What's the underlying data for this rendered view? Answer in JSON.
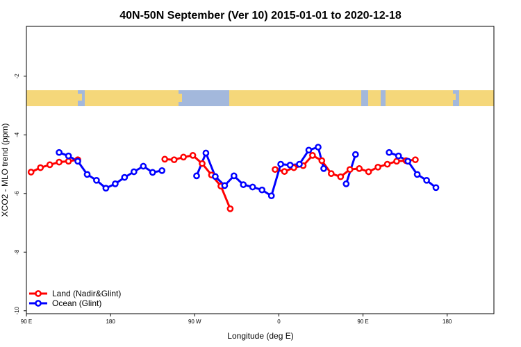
{
  "chart_data": {
    "type": "line",
    "title": "40N-50N September (Ver 10)   2015-01-01 to 2020-12-18",
    "xlabel": "Longitude (deg E)",
    "ylabel": "XCO2 - MLO trend (ppm)",
    "xlim": [
      90,
      590
    ],
    "ylim": [
      -10.1,
      -0.3
    ],
    "x_tick_values": [
      90,
      180,
      270,
      360,
      450,
      540
    ],
    "x_tick_labels": [
      "90 E",
      "180",
      "90 W",
      "0",
      "90 E",
      "180"
    ],
    "y_tick_values": [
      -2,
      -4,
      -6,
      -8,
      -10
    ],
    "y_tick_labels": [
      "-2",
      "-4",
      "-6",
      "-8",
      "-10"
    ],
    "grid": false,
    "legend_position": "bottom-left",
    "series": [
      {
        "name": "Land (Nadir&Glint)",
        "color": "#ff0000",
        "segments": [
          [
            [
              95,
              -5.27
            ],
            [
              105,
              -5.12
            ],
            [
              115,
              -5.02
            ],
            [
              125,
              -4.93
            ],
            [
              135,
              -4.9
            ],
            [
              145,
              -4.85
            ]
          ],
          [
            [
              238,
              -4.83
            ],
            [
              248,
              -4.85
            ],
            [
              258,
              -4.76
            ],
            [
              268,
              -4.7
            ],
            [
              278,
              -4.98
            ],
            [
              288,
              -5.37
            ],
            [
              298,
              -5.75
            ],
            [
              308,
              -6.52
            ]
          ],
          [
            [
              356,
              -5.18
            ],
            [
              366,
              -5.25
            ],
            [
              376,
              -5.12
            ],
            [
              386,
              -5.05
            ],
            [
              396,
              -4.7
            ],
            [
              406,
              -4.88
            ],
            [
              416,
              -5.32
            ],
            [
              426,
              -5.43
            ],
            [
              436,
              -5.18
            ],
            [
              446,
              -5.15
            ],
            [
              456,
              -5.26
            ],
            [
              466,
              -5.1
            ],
            [
              476,
              -5.0
            ],
            [
              486,
              -4.9
            ],
            [
              496,
              -4.88
            ],
            [
              506,
              -4.85
            ]
          ]
        ]
      },
      {
        "name": "Ocean (Glint)",
        "color": "#0000ff",
        "segments": [
          [
            [
              125,
              -4.6
            ],
            [
              135,
              -4.72
            ],
            [
              145,
              -4.9
            ],
            [
              155,
              -5.35
            ],
            [
              165,
              -5.55
            ],
            [
              175,
              -5.82
            ],
            [
              185,
              -5.67
            ],
            [
              195,
              -5.45
            ],
            [
              205,
              -5.26
            ],
            [
              215,
              -5.07
            ],
            [
              225,
              -5.28
            ],
            [
              235,
              -5.22
            ]
          ],
          [
            [
              272,
              -5.4
            ],
            [
              282,
              -4.62
            ],
            [
              292,
              -5.42
            ],
            [
              302,
              -5.73
            ],
            [
              312,
              -5.4
            ],
            [
              322,
              -5.7
            ],
            [
              332,
              -5.78
            ],
            [
              342,
              -5.88
            ],
            [
              352,
              -6.08
            ],
            [
              362,
              -5.0
            ],
            [
              372,
              -5.03
            ],
            [
              382,
              -5.0
            ],
            [
              392,
              -4.52
            ],
            [
              402,
              -4.42
            ],
            [
              408,
              -5.15
            ]
          ],
          [
            [
              432,
              -5.67
            ],
            [
              442,
              -4.67
            ]
          ],
          [
            [
              478,
              -4.6
            ],
            [
              488,
              -4.72
            ],
            [
              498,
              -4.9
            ],
            [
              508,
              -5.35
            ],
            [
              518,
              -5.55
            ],
            [
              528,
              -5.8
            ]
          ]
        ]
      }
    ]
  },
  "map_strip": {
    "land_color": "#f5d77a",
    "ocean_color": "#a3b8dc"
  }
}
